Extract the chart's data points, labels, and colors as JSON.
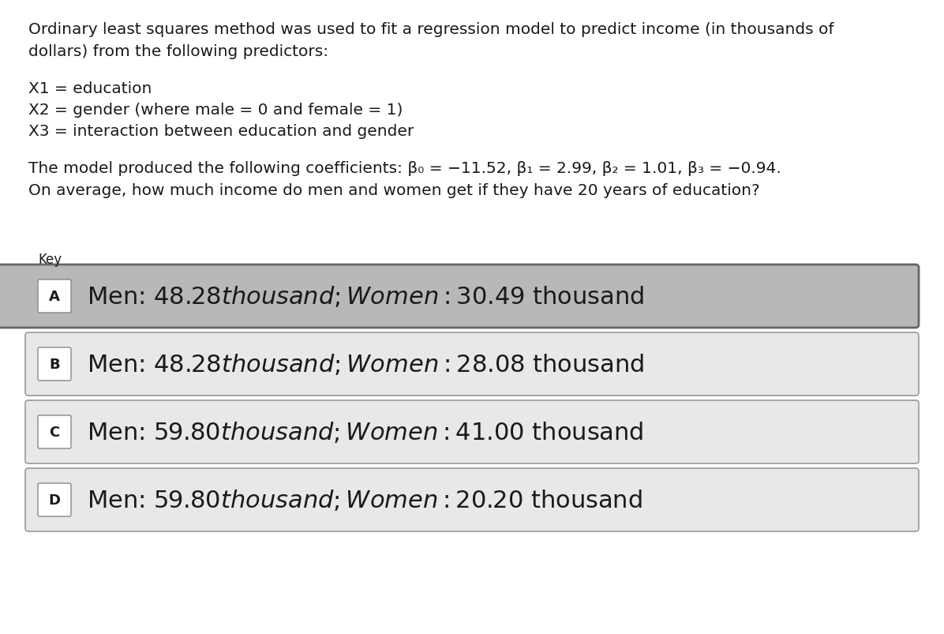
{
  "background_color": "#ffffff",
  "text_color": "#1a1a1a",
  "paragraph1_line1": "Ordinary least squares method was used to fit a regression model to predict income (in thousands of",
  "paragraph1_line2": "dollars) from the following predictors:",
  "predictor1": "X1 = education",
  "predictor2": "X2 = gender (where male = 0 and female = 1)",
  "predictor3": "X3 = interaction between education and gender",
  "coeff_line1": "The model produced the following coefficients: β₀ = −11.52, β₁ = 2.99, β₂ = 1.01, β₃ = −0.94.",
  "coeff_line2": "On average, how much income do men and women get if they have 20 years of education?",
  "options": [
    {
      "label": "A",
      "text": "Men: $48.28 thousand; Women: $30.49 thousand",
      "is_key": true
    },
    {
      "label": "B",
      "text": "Men: $48.28 thousand; Women: $28.08 thousand",
      "is_key": false
    },
    {
      "label": "C",
      "text": "Men: $59.80 thousand; Women: $41.00 thousand",
      "is_key": false
    },
    {
      "label": "D",
      "text": "Men: $59.80 thousand; Women: $20.20 thousand",
      "is_key": false
    }
  ],
  "option_a_bg": "#b8b8b8",
  "option_bcd_bg": "#e8e8e8",
  "option_border_color": "#999999",
  "label_box_bg_A": "#ffffff",
  "label_box_bg_BCD": "#ffffff",
  "font_size_body": 14.5,
  "font_size_options": 22,
  "font_size_label": 13,
  "font_size_key": 12
}
